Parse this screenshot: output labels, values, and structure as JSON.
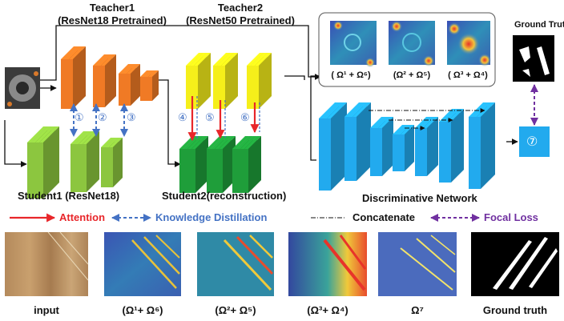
{
  "teacher1": {
    "name": "Teacher1",
    "model": "(ResNet18 Pretrained)"
  },
  "teacher2": {
    "name": "Teacher2",
    "model": "(ResNet50 Pretrained)"
  },
  "student1": {
    "label": "Student1 (ResNet18)"
  },
  "student2": {
    "label": "Student2(reconstruction)"
  },
  "discriminative": {
    "label": "Discriminative Network"
  },
  "ground_truth_top": "Ground Truth",
  "markers": [
    "①",
    "②",
    "③",
    "④",
    "⑤",
    "⑥",
    "⑦"
  ],
  "heatmap_labels": [
    "( Ω¹ + Ω⁶)",
    "(Ω² + Ω⁵)",
    "( Ω³ + Ω⁴)"
  ],
  "legend": {
    "attention": "Attention",
    "kd": "Knowledge Distillation",
    "concat": "Concatenate",
    "focal": "Focal Loss"
  },
  "bottom_captions": [
    "input",
    "(Ω¹+ Ω⁶)",
    "(Ω²+ Ω⁵)",
    "(Ω³+ Ω⁴)",
    "Ω⁷",
    "Ground truth"
  ],
  "colors": {
    "teacher1": "#f07a25",
    "teacher2": "#f5ef1a",
    "student1": "#8cc63f",
    "student2": "#1f9e3a",
    "discriminative": "#22aaee",
    "attention": "#e8262a",
    "kd": "#4472c4",
    "focal": "#7030a0"
  }
}
